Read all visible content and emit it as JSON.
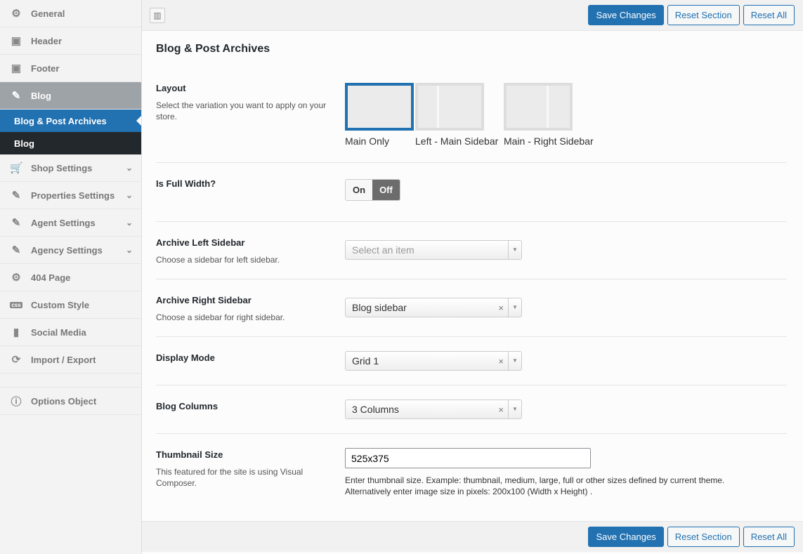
{
  "sidebar": {
    "items": [
      {
        "label": "General",
        "icon": "gears-icon"
      },
      {
        "label": "Header",
        "icon": "layout-icon"
      },
      {
        "label": "Footer",
        "icon": "layout-icon"
      },
      {
        "label": "Blog",
        "icon": "pencil-icon"
      },
      {
        "label": "Shop Settings",
        "icon": "cart-icon"
      },
      {
        "label": "Properties Settings",
        "icon": "pencil-icon"
      },
      {
        "label": "Agent Settings",
        "icon": "pencil-icon"
      },
      {
        "label": "Agency Settings",
        "icon": "pencil-icon"
      },
      {
        "label": "404 Page",
        "icon": "gear-icon"
      },
      {
        "label": "Custom Style",
        "icon": "css-icon"
      },
      {
        "label": "Social Media",
        "icon": "file-icon"
      },
      {
        "label": "Import / Export",
        "icon": "refresh-icon"
      },
      {
        "label": "Options Object",
        "icon": "info-icon"
      }
    ],
    "submenu": [
      "Blog & Post Archives",
      "Blog"
    ]
  },
  "toolbar": {
    "save": "Save Changes",
    "reset_section": "Reset Section",
    "reset_all": "Reset All"
  },
  "section": {
    "title": "Blog & Post Archives"
  },
  "fields": {
    "layout": {
      "label": "Layout",
      "desc": "Select the variation you want to apply on your store.",
      "options": [
        "Main Only",
        "Left - Main Sidebar",
        "Main - Right Sidebar"
      ],
      "selected": "Main Only"
    },
    "full_width": {
      "label": "Is Full Width?",
      "on": "On",
      "off": "Off",
      "value": "Off"
    },
    "left_sidebar": {
      "label": "Archive Left Sidebar",
      "desc": "Choose a sidebar for left sidebar.",
      "placeholder": "Select an item"
    },
    "right_sidebar": {
      "label": "Archive Right Sidebar",
      "desc": "Choose a sidebar for right sidebar.",
      "value": "Blog sidebar"
    },
    "display_mode": {
      "label": "Display Mode",
      "value": "Grid 1"
    },
    "columns": {
      "label": "Blog Columns",
      "value": "3 Columns"
    },
    "thumb": {
      "label": "Thumbnail Size",
      "desc": "This featured for the site is using Visual Composer.",
      "value": "525x375",
      "help1": "Enter thumbnail size. Example: thumbnail, medium, large, full or other sizes defined by current theme.",
      "help2": "Alternatively enter image size in pixels: 200x100 (Width x Height) ."
    }
  },
  "colors": {
    "accent": "#2271b1"
  }
}
